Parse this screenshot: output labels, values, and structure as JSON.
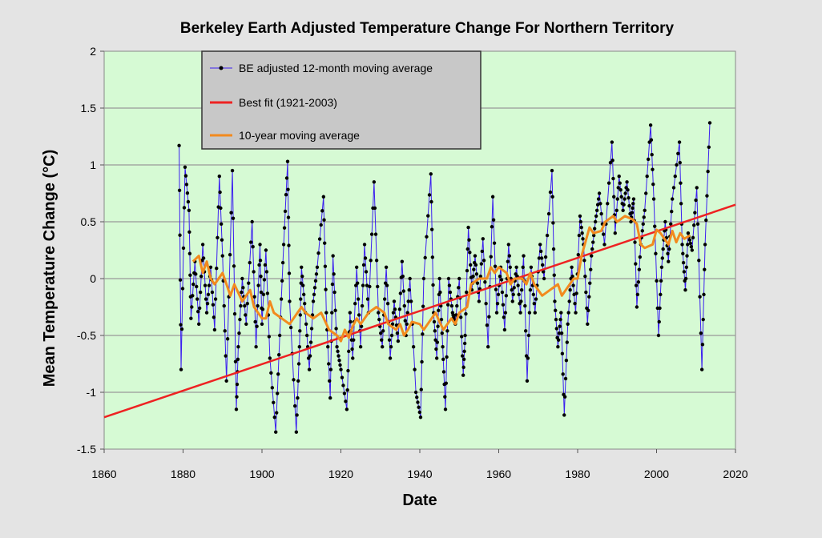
{
  "chart_data": {
    "type": "line",
    "title": "Berkeley Earth Adjusted Temperature Change For Northern Territory",
    "xlabel": "Date",
    "ylabel": "Mean  Temperature  Change  (°C)",
    "xlim": [
      1860,
      2020
    ],
    "ylim": [
      -1.5,
      2
    ],
    "xticks": [
      "1860",
      "1880",
      "1900",
      "1920",
      "1940",
      "1960",
      "1980",
      "2000",
      "2020"
    ],
    "yticks": [
      "-1.5",
      "-1",
      "-0.5",
      "0",
      "0.5",
      "1",
      "1.5",
      "2"
    ],
    "grid": "horizontal",
    "legend_placement": "top-left",
    "plot_background": "#d6fad4",
    "series": [
      {
        "name": "BE adjusted 12-month moving average",
        "color": "#3b1ff0",
        "marker_color": "#000000",
        "points": [
          [
            1879.0,
            1.17
          ],
          [
            1879.5,
            -0.8
          ],
          [
            1880.5,
            0.98
          ],
          [
            1881.5,
            0.6
          ],
          [
            1882,
            -0.35
          ],
          [
            1883,
            0.15
          ],
          [
            1884,
            -0.4
          ],
          [
            1885,
            0.3
          ],
          [
            1886,
            -0.3
          ],
          [
            1887,
            0.1
          ],
          [
            1888,
            -0.45
          ],
          [
            1889.2,
            0.9
          ],
          [
            1890,
            0.2
          ],
          [
            1891,
            -0.9
          ],
          [
            1892.5,
            0.95
          ],
          [
            1893.5,
            -1.15
          ],
          [
            1894,
            -0.6
          ],
          [
            1895,
            0.0
          ],
          [
            1896,
            -0.4
          ],
          [
            1897.5,
            0.5
          ],
          [
            1898.5,
            -0.6
          ],
          [
            1899.5,
            0.3
          ],
          [
            1900,
            -0.4
          ],
          [
            1901,
            0.25
          ],
          [
            1902,
            -0.7
          ],
          [
            1903.5,
            -1.35
          ],
          [
            1904.5,
            -0.5
          ],
          [
            1905.5,
            0.3
          ],
          [
            1906.5,
            1.03
          ],
          [
            1907,
            -0.2
          ],
          [
            1908.7,
            -1.35
          ],
          [
            1909.5,
            -0.6
          ],
          [
            1910,
            0.1
          ],
          [
            1911,
            -0.3
          ],
          [
            1912,
            -0.8
          ],
          [
            1913,
            -0.2
          ],
          [
            1914,
            0.1
          ],
          [
            1915.6,
            0.72
          ],
          [
            1916.3,
            -0.3
          ],
          [
            1917.3,
            -1.05
          ],
          [
            1918,
            0.2
          ],
          [
            1919,
            -0.6
          ],
          [
            1920,
            -0.8
          ],
          [
            1921.5,
            -1.15
          ],
          [
            1922.3,
            -0.3
          ],
          [
            1923,
            -0.7
          ],
          [
            1924,
            0.1
          ],
          [
            1925,
            -0.6
          ],
          [
            1926,
            0.3
          ],
          [
            1927,
            -0.3
          ],
          [
            1928.4,
            0.85
          ],
          [
            1929.5,
            -0.3
          ],
          [
            1930.5,
            -0.6
          ],
          [
            1931.5,
            0.1
          ],
          [
            1932.5,
            -0.7
          ],
          [
            1933.5,
            -0.2
          ],
          [
            1934.5,
            -0.55
          ],
          [
            1935.5,
            0.15
          ],
          [
            1936.5,
            -0.5
          ],
          [
            1937.5,
            0.0
          ],
          [
            1939,
            -1.0
          ],
          [
            1940.2,
            -1.22
          ],
          [
            1941,
            0.0
          ],
          [
            1942.8,
            0.92
          ],
          [
            1943.5,
            -0.3
          ],
          [
            1944.3,
            -0.7
          ],
          [
            1945,
            0.0
          ],
          [
            1945.8,
            -0.6
          ],
          [
            1946.5,
            -1.15
          ],
          [
            1947.3,
            0.0
          ],
          [
            1948.3,
            -0.3
          ],
          [
            1949,
            -0.4
          ],
          [
            1950,
            0.0
          ],
          [
            1951,
            -0.85
          ],
          [
            1951.5,
            -0.5
          ],
          [
            1952.3,
            0.45
          ],
          [
            1953.2,
            -0.1
          ],
          [
            1954,
            0.2
          ],
          [
            1955,
            -0.2
          ],
          [
            1956,
            0.35
          ],
          [
            1957.3,
            -0.6
          ],
          [
            1958.5,
            0.72
          ],
          [
            1959.5,
            -0.3
          ],
          [
            1960.5,
            0.1
          ],
          [
            1961.5,
            -0.45
          ],
          [
            1962.5,
            0.3
          ],
          [
            1963.5,
            -0.2
          ],
          [
            1964.5,
            0.1
          ],
          [
            1965.5,
            -0.3
          ],
          [
            1966.3,
            0.2
          ],
          [
            1967.2,
            -0.9
          ],
          [
            1968.2,
            0.1
          ],
          [
            1969.2,
            -0.3
          ],
          [
            1970.5,
            0.3
          ],
          [
            1971.5,
            0.0
          ],
          [
            1973.5,
            0.95
          ],
          [
            1974.2,
            -0.2
          ],
          [
            1975,
            -0.6
          ],
          [
            1975.8,
            -0.3
          ],
          [
            1976.6,
            -1.2
          ],
          [
            1977.5,
            -0.4
          ],
          [
            1978.5,
            0.1
          ],
          [
            1979.5,
            -0.3
          ],
          [
            1980.6,
            0.55
          ],
          [
            1981.5,
            0.3
          ],
          [
            1982.5,
            -0.4
          ],
          [
            1983.5,
            0.2
          ],
          [
            1984.5,
            0.5
          ],
          [
            1985.5,
            0.75
          ],
          [
            1986.8,
            0.3
          ],
          [
            1988.7,
            1.2
          ],
          [
            1989.5,
            0.4
          ],
          [
            1990.5,
            0.9
          ],
          [
            1991.5,
            0.6
          ],
          [
            1992.5,
            0.85
          ],
          [
            1993.5,
            0.5
          ],
          [
            1994.2,
            0.7
          ],
          [
            1995,
            -0.25
          ],
          [
            1996,
            0.3
          ],
          [
            1997,
            0.6
          ],
          [
            1998.5,
            1.35
          ],
          [
            1999.3,
            0.7
          ],
          [
            2000.5,
            -0.5
          ],
          [
            2001.3,
            0.1
          ],
          [
            2002.2,
            0.5
          ],
          [
            2003,
            0.15
          ],
          [
            2004,
            0.7
          ],
          [
            2005.8,
            1.2
          ],
          [
            2006.5,
            0.3
          ],
          [
            2007.3,
            -0.1
          ],
          [
            2008,
            0.4
          ],
          [
            2009,
            0.25
          ],
          [
            2010.2,
            0.8
          ],
          [
            2011.5,
            -0.8
          ],
          [
            2012.3,
            0.3
          ],
          [
            2013.5,
            1.37
          ]
        ]
      },
      {
        "name": "Best fit (1921-2003)",
        "color": "#ee2222",
        "points": [
          [
            1860,
            -1.22
          ],
          [
            2020,
            0.65
          ]
        ]
      },
      {
        "name": "10-year moving average",
        "color": "#f28a1e",
        "points": [
          [
            1882.5,
            0.15
          ],
          [
            1884,
            0.2
          ],
          [
            1885,
            0.05
          ],
          [
            1886,
            0.15
          ],
          [
            1887,
            0.0
          ],
          [
            1888,
            -0.05
          ],
          [
            1890,
            0.05
          ],
          [
            1892,
            -0.15
          ],
          [
            1893,
            -0.05
          ],
          [
            1895,
            -0.2
          ],
          [
            1897,
            -0.1
          ],
          [
            1898,
            -0.25
          ],
          [
            1900,
            -0.35
          ],
          [
            1901,
            -0.35
          ],
          [
            1902,
            -0.2
          ],
          [
            1903,
            -0.3
          ],
          [
            1905,
            -0.35
          ],
          [
            1907,
            -0.4
          ],
          [
            1908,
            -0.35
          ],
          [
            1910,
            -0.25
          ],
          [
            1911,
            -0.3
          ],
          [
            1913,
            -0.35
          ],
          [
            1915,
            -0.3
          ],
          [
            1917,
            -0.45
          ],
          [
            1919,
            -0.5
          ],
          [
            1920,
            -0.55
          ],
          [
            1921,
            -0.45
          ],
          [
            1922,
            -0.52
          ],
          [
            1923,
            -0.42
          ],
          [
            1924,
            -0.35
          ],
          [
            1925,
            -0.4
          ],
          [
            1927,
            -0.3
          ],
          [
            1929,
            -0.25
          ],
          [
            1931,
            -0.3
          ],
          [
            1932,
            -0.4
          ],
          [
            1934,
            -0.45
          ],
          [
            1935,
            -0.4
          ],
          [
            1936,
            -0.5
          ],
          [
            1937,
            -0.45
          ],
          [
            1938,
            -0.38
          ],
          [
            1940,
            -0.4
          ],
          [
            1941,
            -0.45
          ],
          [
            1942,
            -0.4
          ],
          [
            1944,
            -0.3
          ],
          [
            1945,
            -0.38
          ],
          [
            1946,
            -0.45
          ],
          [
            1948,
            -0.35
          ],
          [
            1949,
            -0.4
          ],
          [
            1950,
            -0.3
          ],
          [
            1952,
            -0.25
          ],
          [
            1953,
            -0.05
          ],
          [
            1955,
            0.0
          ],
          [
            1957,
            0.0
          ],
          [
            1958,
            0.1
          ],
          [
            1959,
            0.05
          ],
          [
            1960,
            0.1
          ],
          [
            1962,
            0.05
          ],
          [
            1963,
            -0.05
          ],
          [
            1964,
            0.0
          ],
          [
            1966,
            0.0
          ],
          [
            1967,
            -0.05
          ],
          [
            1968,
            0.05
          ],
          [
            1969,
            -0.05
          ],
          [
            1970,
            -0.1
          ],
          [
            1971,
            -0.15
          ],
          [
            1973,
            -0.1
          ],
          [
            1975,
            -0.05
          ],
          [
            1976,
            -0.15
          ],
          [
            1977,
            -0.1
          ],
          [
            1979,
            0.0
          ],
          [
            1980,
            0.0
          ],
          [
            1981,
            0.2
          ],
          [
            1983,
            0.45
          ],
          [
            1984,
            0.4
          ],
          [
            1986,
            0.42
          ],
          [
            1987,
            0.5
          ],
          [
            1989,
            0.55
          ],
          [
            1990,
            0.5
          ],
          [
            1992,
            0.55
          ],
          [
            1994,
            0.52
          ],
          [
            1995,
            0.48
          ],
          [
            1996,
            0.3
          ],
          [
            1997,
            0.27
          ],
          [
            1999,
            0.3
          ],
          [
            2000,
            0.43
          ],
          [
            2001,
            0.4
          ],
          [
            2003,
            0.3
          ],
          [
            2004,
            0.42
          ],
          [
            2005,
            0.32
          ],
          [
            2006,
            0.4
          ],
          [
            2007,
            0.35
          ],
          [
            2008.5,
            0.38
          ]
        ]
      }
    ]
  }
}
